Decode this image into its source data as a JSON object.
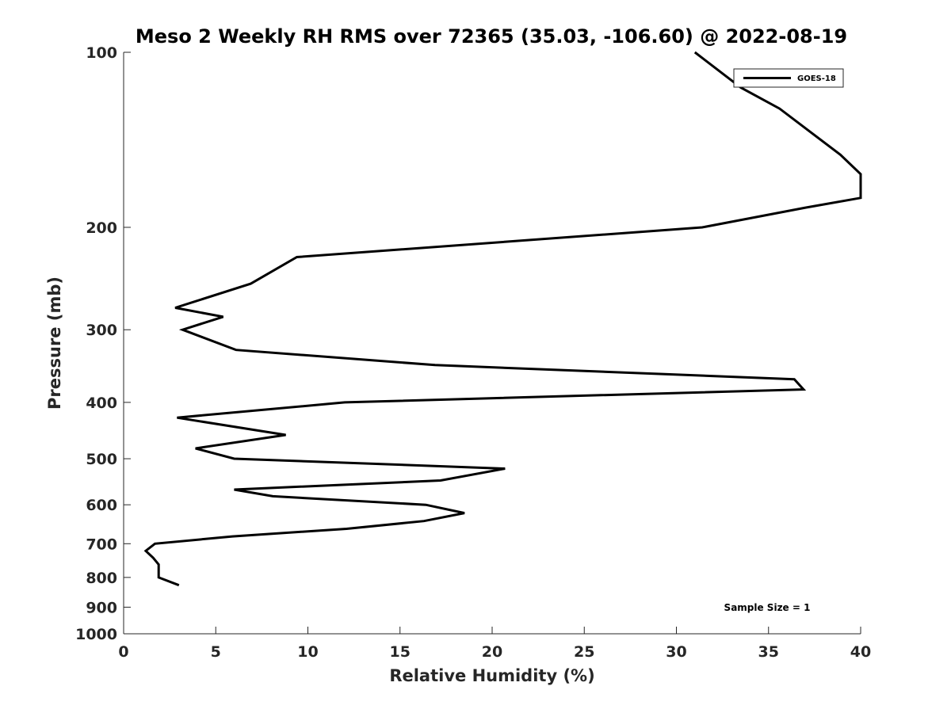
{
  "chart_data": {
    "type": "line",
    "title": "Meso 2 Weekly RH RMS over 72365 (35.03, -106.60) @ 2022-08-19",
    "xlabel": "Relative Humidity (%)",
    "ylabel": "Pressure (mb)",
    "xlim": [
      0,
      40
    ],
    "ylim": [
      100,
      1000
    ],
    "y_scale": "log",
    "y_reversed": true,
    "grid": false,
    "legend_position": "top-right",
    "x_ticks": [
      "0",
      "5",
      "10",
      "15",
      "20",
      "25",
      "30",
      "35",
      "40"
    ],
    "y_ticks": [
      "100",
      "200",
      "300",
      "400",
      "500",
      "600",
      "700",
      "800",
      "900",
      "1000"
    ],
    "annotation": "Sample Size = 1",
    "series": [
      {
        "name": "GOES-18",
        "color": "#000000",
        "points": [
          {
            "rh": 31.0,
            "p": 100
          },
          {
            "rh": 33.5,
            "p": 115
          },
          {
            "rh": 35.6,
            "p": 125
          },
          {
            "rh": 38.9,
            "p": 150
          },
          {
            "rh": 40.0,
            "p": 162
          },
          {
            "rh": 40.0,
            "p": 178
          },
          {
            "rh": 37.0,
            "p": 185
          },
          {
            "rh": 31.4,
            "p": 200
          },
          {
            "rh": 9.4,
            "p": 225
          },
          {
            "rh": 6.9,
            "p": 250
          },
          {
            "rh": 2.8,
            "p": 275
          },
          {
            "rh": 5.4,
            "p": 285
          },
          {
            "rh": 3.2,
            "p": 300
          },
          {
            "rh": 6.1,
            "p": 325
          },
          {
            "rh": 16.9,
            "p": 345
          },
          {
            "rh": 36.4,
            "p": 365
          },
          {
            "rh": 36.9,
            "p": 380
          },
          {
            "rh": 12.0,
            "p": 400
          },
          {
            "rh": 2.9,
            "p": 425
          },
          {
            "rh": 8.8,
            "p": 455
          },
          {
            "rh": 3.9,
            "p": 480
          },
          {
            "rh": 6.0,
            "p": 500
          },
          {
            "rh": 20.7,
            "p": 520
          },
          {
            "rh": 17.2,
            "p": 545
          },
          {
            "rh": 6.0,
            "p": 565
          },
          {
            "rh": 8.1,
            "p": 580
          },
          {
            "rh": 16.4,
            "p": 600
          },
          {
            "rh": 18.5,
            "p": 620
          },
          {
            "rh": 16.3,
            "p": 640
          },
          {
            "rh": 12.1,
            "p": 660
          },
          {
            "rh": 5.9,
            "p": 680
          },
          {
            "rh": 1.7,
            "p": 700
          },
          {
            "rh": 1.2,
            "p": 720
          },
          {
            "rh": 1.6,
            "p": 740
          },
          {
            "rh": 1.9,
            "p": 760
          },
          {
            "rh": 1.9,
            "p": 800
          },
          {
            "rh": 3.0,
            "p": 825
          }
        ]
      }
    ]
  }
}
